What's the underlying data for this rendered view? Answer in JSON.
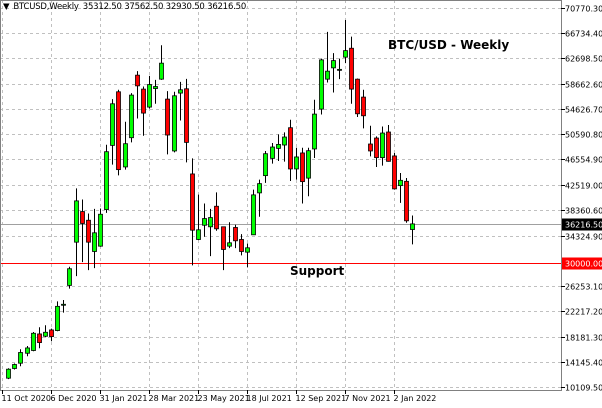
{
  "header": {
    "symbol": "BTCUSD,Weekly",
    "ohlc": "35312.50 37562.50 32930.50 36216.50"
  },
  "chart_data": {
    "type": "candlestick",
    "title": "BTC/USD - Weekly",
    "ylim": [
      10109.5,
      70770.3
    ],
    "grid": true,
    "colors": {
      "up": "#00ff00",
      "down": "#ff0000",
      "outline": "#000000",
      "grid": "#c0c0c0",
      "support": "#ff0000",
      "bid": "#a0a0a0"
    },
    "y_ticks": [
      "70770.30",
      "66734.40",
      "62698.50",
      "58662.60",
      "54626.70",
      "50590.80",
      "46554.90",
      "42519.00",
      "38360.60",
      "34324.90",
      "26253.10",
      "22217.20",
      "18181.30",
      "14145.40",
      "10109.50"
    ],
    "x_ticks": [
      {
        "date": "2020-10-11",
        "label": "11 Oct 2020"
      },
      {
        "date": "2020-12-06",
        "label": "6 Dec 2020"
      },
      {
        "date": "2021-01-31",
        "label": "31 Jan 2021"
      },
      {
        "date": "2021-03-28",
        "label": "28 Mar 2021"
      },
      {
        "date": "2021-05-23",
        "label": "23 May 2021"
      },
      {
        "date": "2021-07-18",
        "label": "18 Jul 2021"
      },
      {
        "date": "2021-09-12",
        "label": "12 Sep 2021"
      },
      {
        "date": "2021-11-07",
        "label": "7 Nov 2021"
      },
      {
        "date": "2022-01-02",
        "label": "2 Jan 2022"
      }
    ],
    "current_price": {
      "value": 36216.5,
      "label": "36216.50"
    },
    "support": {
      "value": 30000,
      "label": "30000.00",
      "text": "Support"
    },
    "candles": [
      [
        "2020-10-18",
        11520,
        13120,
        11360,
        12960
      ],
      [
        "2020-10-25",
        13070,
        13870,
        12910,
        13710
      ],
      [
        "2020-11-01",
        13920,
        16150,
        13440,
        15630
      ],
      [
        "2020-11-08",
        15510,
        16680,
        15040,
        16360
      ],
      [
        "2020-11-15",
        15950,
        18920,
        15830,
        18710
      ],
      [
        "2020-11-22",
        18600,
        19670,
        16310,
        17220
      ],
      [
        "2020-11-29",
        18230,
        19990,
        18070,
        18870
      ],
      [
        "2020-12-06",
        19240,
        19460,
        17430,
        18180
      ],
      [
        "2020-12-13",
        19140,
        23820,
        19030,
        23020
      ],
      [
        "2020-12-20",
        23300,
        24030,
        22010,
        23350
      ],
      [
        "2020-12-27",
        26370,
        29360,
        25850,
        29040
      ],
      [
        "2021-01-03",
        33290,
        41910,
        27860,
        39900
      ],
      [
        "2021-01-10",
        38190,
        40110,
        30100,
        36280
      ],
      [
        "2021-01-17",
        36800,
        37870,
        28820,
        33290
      ],
      [
        "2021-01-24",
        31800,
        38620,
        29140,
        34790
      ],
      [
        "2021-01-31",
        32650,
        38670,
        32550,
        37760
      ],
      [
        "2021-02-07",
        38510,
        48890,
        37980,
        47770
      ],
      [
        "2021-02-14",
        48780,
        56190,
        45700,
        55440
      ],
      [
        "2021-02-21",
        57360,
        57680,
        43990,
        44900
      ],
      [
        "2021-02-28",
        45330,
        52570,
        44900,
        49050
      ],
      [
        "2021-03-07",
        50010,
        57150,
        49260,
        56830
      ],
      [
        "2021-03-14",
        60020,
        60660,
        53090,
        58310
      ],
      [
        "2021-03-21",
        57790,
        58200,
        50330,
        53950
      ],
      [
        "2021-03-28",
        54910,
        59910,
        54690,
        58520
      ],
      [
        "2021-04-04",
        57880,
        59270,
        55440,
        58200
      ],
      [
        "2021-04-11",
        59380,
        64810,
        59270,
        61940
      ],
      [
        "2021-04-18",
        56190,
        57470,
        47340,
        50440
      ],
      [
        "2021-04-25",
        47890,
        57360,
        47660,
        56720
      ],
      [
        "2021-05-02",
        57150,
        58950,
        52770,
        57680
      ],
      [
        "2021-05-09",
        57840,
        59430,
        46070,
        49260
      ],
      [
        "2021-05-16",
        44210,
        46700,
        29570,
        35210
      ],
      [
        "2021-05-23",
        33720,
        40910,
        33610,
        35270
      ],
      [
        "2021-05-30",
        36000,
        39470,
        34150,
        37070
      ],
      [
        "2021-06-06",
        35750,
        38620,
        31050,
        37230
      ],
      [
        "2021-06-13",
        39040,
        41270,
        35110,
        35430
      ],
      [
        "2021-06-20",
        35750,
        35800,
        28820,
        32120
      ],
      [
        "2021-06-27",
        32650,
        36480,
        32330,
        33190
      ],
      [
        "2021-07-04",
        35640,
        36070,
        32330,
        33510
      ],
      [
        "2021-07-11",
        33720,
        34570,
        31170,
        31800
      ],
      [
        "2021-07-18",
        31690,
        33080,
        29250,
        32390
      ],
      [
        "2021-07-25",
        34470,
        41710,
        34470,
        40860
      ],
      [
        "2021-08-01",
        41180,
        43300,
        37350,
        42660
      ],
      [
        "2021-08-08",
        43940,
        47890,
        42780,
        47450
      ],
      [
        "2021-08-15",
        46700,
        49160,
        45860,
        48520
      ],
      [
        "2021-08-22",
        48300,
        50540,
        46290,
        48940
      ],
      [
        "2021-08-29",
        48840,
        50860,
        46180,
        50120
      ],
      [
        "2021-09-05",
        51610,
        52880,
        43090,
        45010
      ],
      [
        "2021-09-12",
        45010,
        48410,
        43300,
        46930
      ],
      [
        "2021-09-19",
        47570,
        48410,
        39470,
        42980
      ],
      [
        "2021-09-26",
        43540,
        48410,
        40640,
        47930
      ],
      [
        "2021-10-03",
        48210,
        56080,
        46770,
        53790
      ],
      [
        "2021-10-10",
        54590,
        62670,
        53730,
        62470
      ],
      [
        "2021-10-17",
        59380,
        66940,
        58840,
        60660
      ],
      [
        "2021-10-24",
        61190,
        63540,
        57240,
        62350
      ],
      [
        "2021-10-31",
        60790,
        62670,
        59380,
        60950
      ],
      [
        "2021-11-07",
        62900,
        68850,
        61940,
        63950
      ],
      [
        "2021-11-14",
        64330,
        66190,
        55440,
        57790
      ],
      [
        "2021-11-21",
        59380,
        59480,
        53320,
        53840
      ],
      [
        "2021-11-28",
        56510,
        57680,
        51500,
        53520
      ],
      [
        "2021-12-05",
        49000,
        51930,
        47020,
        47890
      ],
      [
        "2021-12-12",
        49960,
        50220,
        45330,
        46820
      ],
      [
        "2021-12-19",
        46820,
        51810,
        45540,
        50760
      ],
      [
        "2021-12-26",
        50920,
        52040,
        46180,
        46230
      ],
      [
        "2022-01-02",
        47090,
        47570,
        41710,
        41820
      ],
      [
        "2022-01-09",
        42340,
        44370,
        39580,
        43190
      ],
      [
        "2022-01-16",
        43030,
        43570,
        36390,
        36710
      ],
      [
        "2022-01-23",
        35312.5,
        37562.5,
        32930.5,
        36216.5
      ]
    ]
  }
}
